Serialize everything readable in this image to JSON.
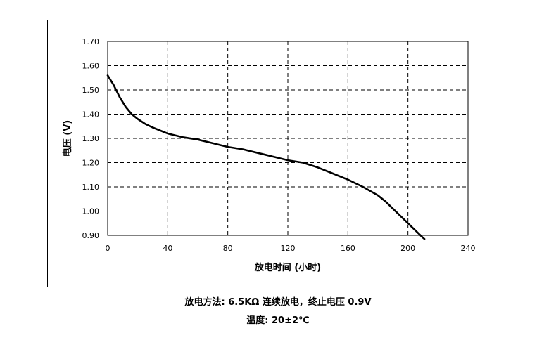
{
  "chart_data": {
    "type": "line",
    "title": "",
    "xlabel": "放电时间 (小时)",
    "ylabel": "电压 (V)",
    "xlim": [
      0,
      240
    ],
    "ylim": [
      0.9,
      1.7
    ],
    "x_ticks": [
      "0",
      "40",
      "80",
      "120",
      "160",
      "200",
      "240"
    ],
    "y_ticks": [
      "0.90",
      "1.00",
      "1.10",
      "1.20",
      "1.30",
      "1.40",
      "1.50",
      "1.60",
      "1.70"
    ],
    "grid": true,
    "line_color": "#000000",
    "series": [
      {
        "x": [
          0,
          4,
          8,
          12,
          16,
          20,
          25,
          30,
          40,
          50,
          60,
          70,
          80,
          90,
          100,
          110,
          120,
          130,
          140,
          150,
          160,
          170,
          180,
          185,
          190,
          195,
          200,
          205,
          210,
          211
        ],
        "y": [
          1.56,
          1.52,
          1.47,
          1.43,
          1.4,
          1.38,
          1.36,
          1.345,
          1.32,
          1.305,
          1.295,
          1.28,
          1.265,
          1.255,
          1.24,
          1.225,
          1.21,
          1.2,
          1.18,
          1.155,
          1.13,
          1.1,
          1.065,
          1.04,
          1.01,
          0.98,
          0.95,
          0.92,
          0.89,
          0.885
        ]
      }
    ]
  },
  "captions": {
    "line1": "放电方法: 6.5KΩ 连续放电，终止电压 0.9V",
    "line2": "温度: 20±2℃"
  }
}
